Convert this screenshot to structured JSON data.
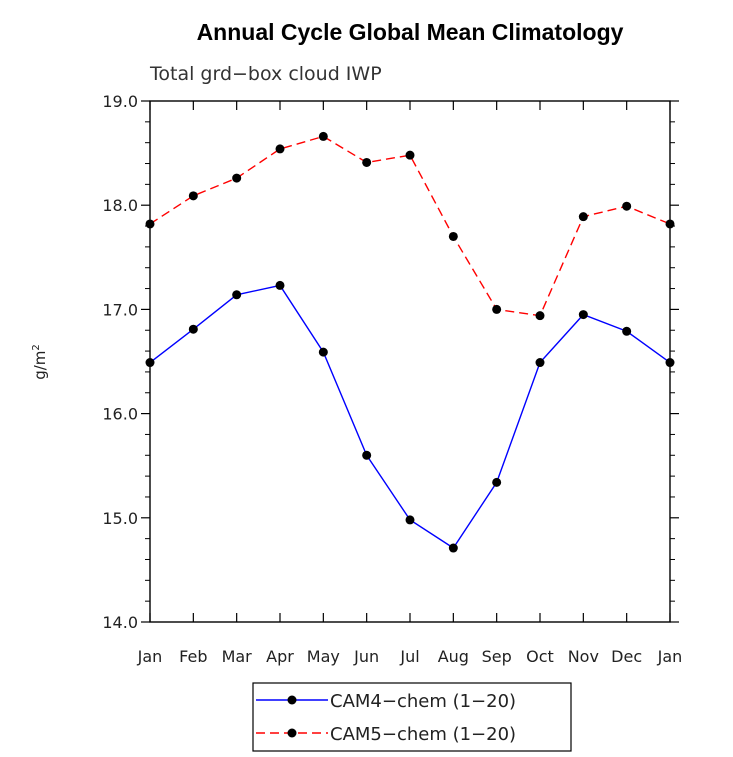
{
  "chart_data": {
    "type": "line",
    "title": "Annual Cycle Global Mean Climatology",
    "subtitle": "Total grd−box cloud IWP",
    "ylabel": "g/m",
    "ylabel_sup": "2",
    "xlabel": "",
    "categories": [
      "Jan",
      "Feb",
      "Mar",
      "Apr",
      "May",
      "Jun",
      "Jul",
      "Aug",
      "Sep",
      "Oct",
      "Nov",
      "Dec",
      "Jan"
    ],
    "ylim": [
      14.0,
      19.0
    ],
    "yticks": [
      "14.0",
      "15.0",
      "16.0",
      "17.0",
      "18.0",
      "19.0"
    ],
    "ytick_values": [
      14.0,
      15.0,
      16.0,
      17.0,
      18.0,
      19.0
    ],
    "grid": false,
    "legend_position": "bottom-center",
    "series": [
      {
        "name": "CAM4−chem (1−20)",
        "color": "#0000ff",
        "dash": "solid",
        "values": [
          16.49,
          16.81,
          17.14,
          17.23,
          16.59,
          15.6,
          14.98,
          14.71,
          15.34,
          16.49,
          16.95,
          16.79,
          16.49
        ]
      },
      {
        "name": "CAM5−chem (1−20)",
        "color": "#ff0000",
        "dash": "dashed",
        "values": [
          17.82,
          18.09,
          18.26,
          18.54,
          18.66,
          18.41,
          18.48,
          17.7,
          17.0,
          16.94,
          17.89,
          17.99,
          17.82
        ]
      }
    ]
  }
}
